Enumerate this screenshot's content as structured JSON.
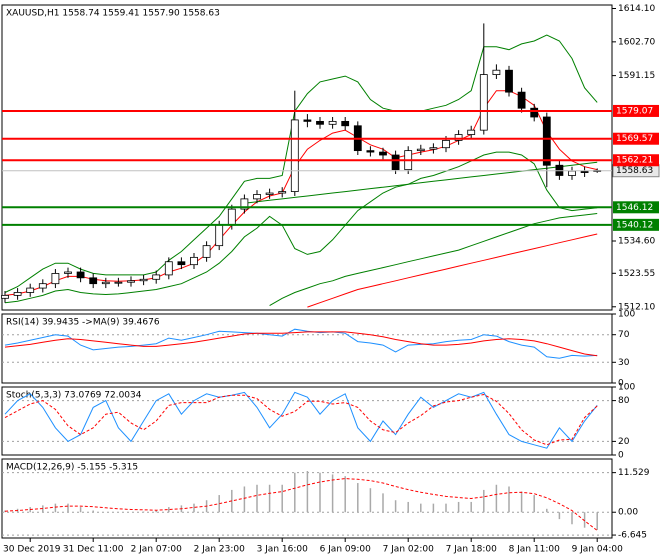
{
  "chart_data": [
    {
      "type": "candlestick",
      "title": "XAUUSD,H1  1558.74 1559.41 1557.90 1558.63",
      "open": [
        1515.0,
        1516.0,
        1517.0,
        1518.5,
        1520.0,
        1523.5,
        1524.0,
        1522.0,
        1520.0,
        1520.5,
        1520.5,
        1521.0,
        1521.5,
        1523.0,
        1527.5,
        1526.5,
        1529.0,
        1533.0,
        1540.0,
        1545.5,
        1549.0,
        1550.5,
        1551.0,
        1551.5,
        1576.0,
        1575.5,
        1574.5,
        1575.5,
        1574.0,
        1565.5,
        1565.0,
        1564.0,
        1559.0,
        1565.5,
        1566.0,
        1566.5,
        1569.0,
        1571.0,
        1572.5,
        1591.5,
        1593.0,
        1585.5,
        1580.0,
        1577.0,
        1560.5,
        1557.0,
        1558.5,
        1558.74
      ],
      "high": [
        1517.5,
        1518.5,
        1520,
        1521.5,
        1525,
        1525.5,
        1525.5,
        1523.5,
        1522,
        1522,
        1522.5,
        1523,
        1524.5,
        1529,
        1529,
        1530.5,
        1534.5,
        1541.5,
        1547,
        1550.5,
        1552,
        1552.5,
        1553,
        1586,
        1578,
        1577,
        1577,
        1577,
        1575.5,
        1567,
        1566.5,
        1565.5,
        1567,
        1567.5,
        1568,
        1570.5,
        1572.5,
        1574,
        1609,
        1595,
        1594.5,
        1587,
        1581.5,
        1578.5,
        1562,
        1560,
        1560,
        1559.41
      ],
      "low": [
        1513.5,
        1514.5,
        1515.5,
        1517,
        1518.5,
        1522,
        1520.5,
        1518.5,
        1518.5,
        1519,
        1519,
        1519.5,
        1520,
        1521.5,
        1525,
        1525,
        1527.5,
        1531.5,
        1538.5,
        1544,
        1547.5,
        1549,
        1549.5,
        1550,
        1573.5,
        1573,
        1573,
        1572.5,
        1564,
        1563.5,
        1562.5,
        1557.5,
        1557.5,
        1564,
        1564.5,
        1565,
        1567.5,
        1569.5,
        1571,
        1590,
        1584,
        1578.5,
        1575.5,
        1553,
        1555.5,
        1555.5,
        1556.5,
        1557.9
      ],
      "close": [
        1516.0,
        1517.0,
        1518.5,
        1520.0,
        1523.5,
        1524.0,
        1522.0,
        1520.0,
        1520.5,
        1520.5,
        1521.0,
        1521.5,
        1523.0,
        1527.5,
        1526.5,
        1529.0,
        1533.0,
        1540.0,
        1545.5,
        1549.0,
        1550.5,
        1551.0,
        1551.5,
        1576.0,
        1575.5,
        1574.5,
        1575.5,
        1574.0,
        1565.5,
        1565.0,
        1564.0,
        1559.0,
        1565.5,
        1566.0,
        1566.5,
        1569.0,
        1571.0,
        1572.5,
        1591.5,
        1593.0,
        1585.5,
        1580.0,
        1577.0,
        1560.5,
        1557.0,
        1558.5,
        1558.0,
        1558.63
      ],
      "series": [
        {
          "color": "#008000",
          "values": [
            1517,
            1519,
            1522,
            1525,
            1527,
            1527,
            1525,
            1523.5,
            1523,
            1523,
            1523,
            1523,
            1524,
            1528,
            1531,
            1535,
            1539,
            1543,
            1549,
            1555,
            1556,
            1556,
            1557,
            1579,
            1585,
            1589,
            1590,
            1591,
            1589,
            1583,
            1580,
            1579,
            1579,
            1579,
            1580,
            1581,
            1583,
            1586,
            1601,
            1601,
            1600,
            1602,
            1603,
            1605,
            1603,
            1597,
            1587,
            1582
          ]
        },
        {
          "color": "#008000",
          "values": [
            1513.5,
            1514,
            1515,
            1516,
            1517.5,
            1518,
            1517,
            1516.5,
            1516.3,
            1516.5,
            1517,
            1517.5,
            1518,
            1519,
            1520,
            1522,
            1524,
            1527,
            1531,
            1536,
            1539,
            1543,
            1540,
            1532,
            1530,
            1531,
            1535,
            1540,
            1545,
            1548,
            1551,
            1553,
            1554,
            1556,
            1557,
            1558.5,
            1560,
            1562,
            1564,
            1565,
            1565,
            1564,
            1561,
            1552,
            1546,
            1545,
            1545.5,
            1546
          ]
        },
        {
          "color": "#ff0000",
          "values": [
            1516,
            1516.5,
            1517.5,
            1519,
            1521,
            1522.5,
            1522.5,
            1521.5,
            1521,
            1520.8,
            1521,
            1521.3,
            1522,
            1524,
            1525.3,
            1527,
            1530,
            1535,
            1540,
            1544.5,
            1548,
            1550,
            1551,
            1560,
            1566,
            1569,
            1571.5,
            1572.5,
            1570,
            1567.5,
            1566,
            1563,
            1564,
            1565,
            1565.8,
            1567,
            1569,
            1571,
            1580,
            1586,
            1586,
            1584,
            1581,
            1572,
            1566,
            1562,
            1560,
            1559
          ]
        },
        {
          "color": "#008000",
          "values": [
            null,
            null,
            null,
            null,
            null,
            null,
            null,
            null,
            null,
            null,
            null,
            null,
            null,
            null,
            null,
            null,
            null,
            null,
            null,
            null,
            null,
            1512.5,
            1515,
            1517,
            1518.5,
            1520,
            1521,
            1522.5,
            1523.5,
            1524.5,
            1525.5,
            1526.5,
            1527.5,
            1528.5,
            1529.5,
            1530.5,
            1531.5,
            1533,
            1534.5,
            1536,
            1537.5,
            1539,
            1540.5,
            1541.5,
            1542.5,
            1543,
            1543.5,
            1544
          ]
        },
        {
          "color": "#ff0000",
          "values": [
            null,
            null,
            null,
            null,
            null,
            null,
            null,
            null,
            null,
            null,
            null,
            null,
            null,
            null,
            null,
            null,
            null,
            null,
            null,
            null,
            null,
            null,
            null,
            null,
            1512,
            1513.5,
            1515,
            1516.5,
            1518,
            1519,
            1520,
            1521,
            1522,
            1523,
            1524,
            1525,
            1526,
            1527,
            1528,
            1529,
            1530,
            1531,
            1532,
            1533,
            1534,
            1535,
            1536,
            1537
          ]
        },
        {
          "color": "#008000",
          "values": [
            null,
            null,
            null,
            null,
            null,
            null,
            null,
            null,
            null,
            null,
            null,
            null,
            null,
            null,
            null,
            null,
            null,
            null,
            null,
            1547.5,
            1548,
            1548.5,
            1549,
            1549.5,
            1550,
            1550.5,
            1551,
            1551.5,
            1552,
            1552.5,
            1553,
            1553.5,
            1554,
            1554.5,
            1555,
            1555.5,
            1556,
            1556.5,
            1557,
            1557.5,
            1558,
            1558.5,
            1559,
            1559.5,
            1560,
            1560.5,
            1561,
            1561.5
          ]
        }
      ],
      "levels": [
        {
          "value": 1579.07,
          "color": "#ff0000"
        },
        {
          "value": 1569.57,
          "color": "#ff0000"
        },
        {
          "value": 1562.21,
          "color": "#ff0000"
        },
        {
          "value": 1546.12,
          "color": "#008000"
        },
        {
          "value": 1540.12,
          "color": "#008000"
        }
      ],
      "ylim": [
        1511.0,
        1615.3
      ],
      "yticks": [
        {
          "value": 1614.1,
          "label": "1614.10"
        },
        {
          "value": 1602.7,
          "label": "1602.70"
        },
        1591.15,
        {
          "value": 1534.6,
          "label": "1534.60"
        },
        1523.55,
        {
          "value": 1512.1,
          "label": "1512.10"
        }
      ]
    },
    {
      "type": "line",
      "title": "RSI(14) 39.9435  ->MA(9) 39.4676",
      "series": [
        {
          "color": "#1e90ff",
          "values": [
            55,
            58,
            62,
            66,
            70,
            68,
            55,
            48,
            50,
            52,
            53,
            55,
            57,
            65,
            62,
            66,
            70,
            75,
            74,
            73,
            72,
            70,
            68,
            78,
            75,
            73,
            74,
            72,
            60,
            58,
            55,
            45,
            55,
            56,
            57,
            60,
            62,
            63,
            70,
            68,
            60,
            55,
            52,
            38,
            36,
            40,
            39,
            39.9435
          ]
        },
        {
          "color": "#ff0000",
          "values": [
            52,
            54,
            56,
            59,
            62,
            64,
            63,
            61,
            59,
            57,
            55,
            53,
            53,
            55,
            57,
            59,
            62,
            65,
            68,
            71,
            72,
            72,
            72,
            73,
            74,
            74,
            74,
            74,
            72,
            70,
            67,
            63,
            60,
            57,
            55,
            55,
            56,
            58,
            61,
            63,
            64,
            63,
            61,
            57,
            52,
            47,
            42,
            39.4676
          ]
        }
      ],
      "ylim": [
        0,
        100
      ],
      "yticks": [
        100,
        70,
        30,
        0
      ]
    },
    {
      "type": "line",
      "title": "Stoch(5,3,3) 73.0769 72.0034",
      "series": [
        {
          "color": "#1e90ff",
          "values": [
            60,
            80,
            90,
            70,
            40,
            20,
            30,
            70,
            80,
            40,
            20,
            50,
            80,
            90,
            60,
            80,
            90,
            85,
            88,
            92,
            70,
            40,
            60,
            92,
            85,
            60,
            80,
            90,
            40,
            20,
            50,
            30,
            60,
            85,
            70,
            80,
            90,
            85,
            92,
            60,
            30,
            20,
            15,
            10,
            40,
            20,
            50,
            73.0769
          ]
        },
        {
          "color": "#ff0000",
          "dash": true,
          "values": [
            55,
            65,
            75,
            80,
            67,
            43,
            30,
            40,
            60,
            63,
            47,
            37,
            50,
            73,
            77,
            77,
            77,
            85,
            88,
            88,
            83,
            67,
            57,
            64,
            79,
            79,
            75,
            77,
            70,
            50,
            37,
            33,
            47,
            58,
            72,
            78,
            80,
            85,
            89,
            79,
            61,
            37,
            22,
            15,
            22,
            23,
            55,
            72.0034
          ]
        }
      ],
      "ylim": [
        0,
        100
      ],
      "yticks": [
        100,
        80,
        20,
        0
      ]
    },
    {
      "type": "bar",
      "title": "MACD(12,26,9) -5.155 -5.315",
      "categories": [
        null,
        null,
        "30 Dec 2019",
        null,
        null,
        null,
        null,
        "31 Dec 11:00",
        null,
        null,
        null,
        null,
        "2 Jan 07:00",
        null,
        null,
        null,
        null,
        "2 Jan 23:00",
        null,
        null,
        null,
        null,
        "3 Jan 16:00",
        null,
        null,
        null,
        null,
        "6 Jan 09:00",
        null,
        null,
        null,
        null,
        "7 Jan 02:00",
        null,
        null,
        null,
        null,
        "7 Jan 18:00",
        null,
        null,
        null,
        null,
        "8 Jan 11:00",
        null,
        null,
        null,
        null,
        "9 Jan 04:00"
      ],
      "values": [
        0.5,
        1,
        1.5,
        2,
        2.5,
        2.5,
        1.5,
        0.5,
        0,
        0,
        0,
        0.2,
        0.5,
        1.5,
        2,
        2.5,
        3.5,
        5,
        6.5,
        7.5,
        8,
        8,
        8,
        11.5,
        12,
        11.5,
        11,
        10.5,
        8.5,
        7,
        5.5,
        3.5,
        3,
        2.5,
        2.5,
        2.5,
        3,
        3,
        6.5,
        8,
        7.5,
        6,
        5,
        1,
        -2,
        -3.5,
        -4.5,
        -5.155
      ],
      "color": "#a9a9a9",
      "series": [
        {
          "color": "#ff0000",
          "dash": true,
          "values": [
            0.3,
            0.5,
            0.8,
            1.1,
            1.5,
            1.8,
            1.8,
            1.6,
            1.3,
            1,
            0.8,
            0.7,
            0.6,
            0.8,
            1,
            1.4,
            1.8,
            2.5,
            3.3,
            4.1,
            4.9,
            5.5,
            6,
            7,
            8,
            8.8,
            9.4,
            9.8,
            9.6,
            9.2,
            8.5,
            7.5,
            6.6,
            5.8,
            5.2,
            4.6,
            4.3,
            4,
            4.5,
            5.2,
            5.7,
            5.8,
            5.4,
            4.2,
            2.5,
            0.5,
            -2.5,
            -5.315
          ]
        }
      ],
      "ylim": [
        -7.5,
        15.5
      ],
      "yticks": [
        11.529,
        {
          "value": 0,
          "label": "0.00"
        },
        -6.645
      ]
    }
  ]
}
